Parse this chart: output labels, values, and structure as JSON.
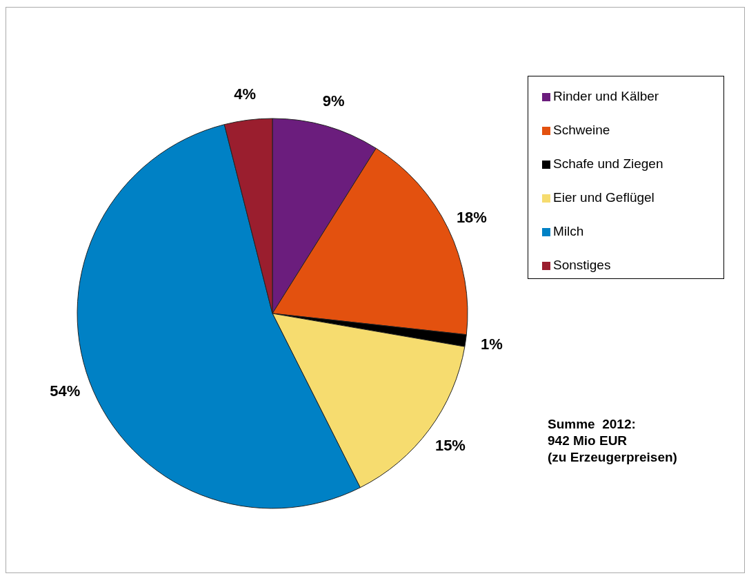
{
  "chart_data": {
    "type": "pie",
    "categories": [
      "Rinder und Kälber",
      "Schweine",
      "Schafe und Ziegen",
      "Eier und Geflügel",
      "Milch",
      "Sonstiges"
    ],
    "values": [
      9,
      18,
      1,
      15,
      54,
      4
    ],
    "value_labels": [
      "9%",
      "18%",
      "1%",
      "15%",
      "54%",
      "4%"
    ],
    "colors": [
      "#6b1d7d",
      "#e3510f",
      "#000000",
      "#f6dc6f",
      "#0081c5",
      "#9a1e2e"
    ],
    "legend": "right",
    "annotations": [
      "Summe  2012:\n942 Mio EUR\n(zu Erzeugerpreisen)"
    ]
  }
}
